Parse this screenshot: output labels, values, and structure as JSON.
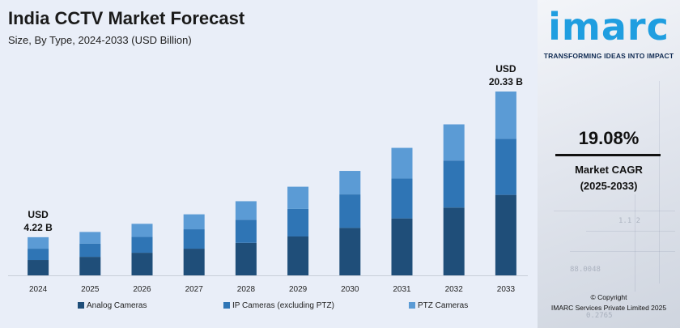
{
  "chart_data": {
    "type": "bar",
    "stacked": true,
    "title": "India CCTV Market Forecast",
    "subtitle": "Size, By Type, 2024-2033 (USD Billion)",
    "categories": [
      "2024",
      "2025",
      "2026",
      "2027",
      "2028",
      "2029",
      "2030",
      "2031",
      "2032",
      "2033"
    ],
    "series": [
      {
        "name": "Analog Cameras",
        "color": "#1f4e79",
        "values": [
          1.7,
          2.05,
          2.5,
          2.95,
          3.6,
          4.3,
          5.25,
          6.3,
          7.5,
          8.9
        ]
      },
      {
        "name": "IP Cameras (excluding PTZ)",
        "color": "#2f75b5",
        "values": [
          1.25,
          1.45,
          1.75,
          2.15,
          2.55,
          3.05,
          3.7,
          4.4,
          5.2,
          6.2
        ]
      },
      {
        "name": "PTZ Cameras",
        "color": "#5b9bd5",
        "values": [
          1.27,
          1.3,
          1.45,
          1.65,
          2.05,
          2.45,
          2.6,
          3.4,
          4.0,
          5.23
        ]
      }
    ],
    "annotations": [
      {
        "category": "2024",
        "lines": [
          "USD",
          "4.22 B"
        ]
      },
      {
        "category": "2033",
        "lines": [
          "USD",
          "20.33 B"
        ]
      }
    ],
    "ylim": [
      0,
      20.33
    ],
    "xlabel": "",
    "ylabel": "",
    "grid": false,
    "legend_position": "bottom"
  },
  "brand": {
    "logo_text": "imarc",
    "tagline": "TRANSFORMING IDEAS INTO IMPACT",
    "cagr_value": "19.08%",
    "cagr_label": "Market CAGR",
    "cagr_period": "(2025-2033)",
    "copyright_line": "© Copyright",
    "copyright_company": "IMARC Services Private Limited 2025"
  }
}
